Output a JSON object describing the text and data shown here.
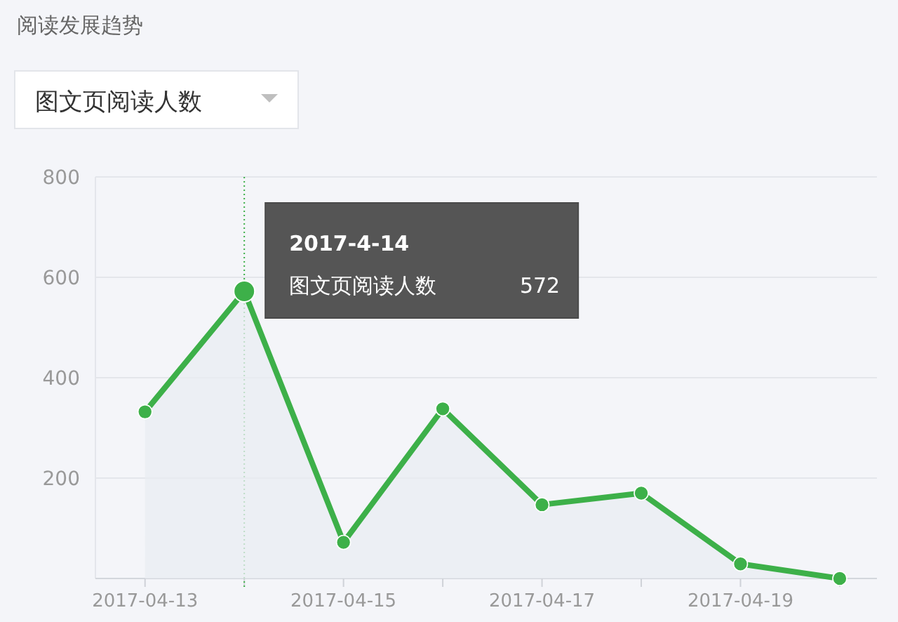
{
  "chart_data": {
    "type": "area",
    "title": "阅读发展趋势",
    "x": [
      "2017-04-13",
      "2017-04-14",
      "2017-04-15",
      "2017-04-16",
      "2017-04-17",
      "2017-04-18",
      "2017-04-19",
      "2017-04-20"
    ],
    "series": [
      {
        "name": "图文页阅读人数",
        "color": "#3db049",
        "values": [
          332,
          572,
          72,
          338,
          147,
          170,
          29,
          0
        ]
      }
    ],
    "annotations": [
      {
        "text": "2017-4-14",
        "x": "2017-04-14",
        "y": 572
      },
      "572"
    ],
    "ref_lines": [
      {
        "axis": "x",
        "value": "2017-04-14",
        "color": "#3db049",
        "line_style": "dotted"
      }
    ],
    "xlim": [
      "2017-04-12T12:00",
      "2017-04-20T09:00"
    ],
    "xticks": [
      "2017-04-13",
      {
        "value": "2017-04-14",
        "label": null
      },
      "2017-04-15",
      {
        "value": "2017-04-16",
        "label": null
      },
      "2017-04-17",
      {
        "value": "2017-04-18",
        "label": null
      },
      "2017-04-19",
      {
        "value": "2017-04-20",
        "label": null
      }
    ],
    "ylim": [
      0,
      800
    ],
    "yticks": [
      200,
      400,
      600,
      800
    ],
    "grid": "y",
    "marker": "circle",
    "line_style": "solid"
  }
}
